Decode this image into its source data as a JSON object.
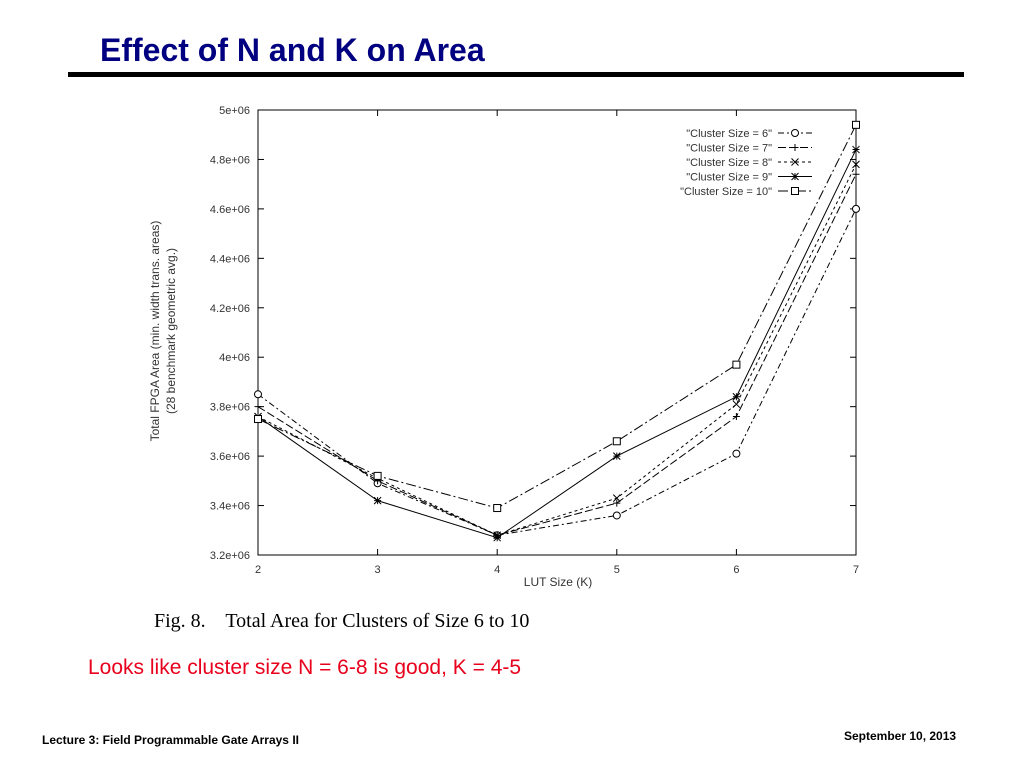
{
  "slide": {
    "title": "Effect of N and K on Area",
    "figure_caption": "Fig. 8.    Total Area for Clusters of Size 6 to 10",
    "note": "Looks like cluster size N = 6-8 is good, K = 4-5",
    "footer_left": "Lecture 3: Field Programmable Gate Arrays II",
    "footer_right": "September 10, 2013",
    "colors": {
      "title": "#000080",
      "note": "#e8001c",
      "rule": "#000000"
    }
  },
  "chart_data": {
    "type": "line",
    "xlabel": "LUT Size (K)",
    "ylabel": "Total FPGA Area (min. width trans. areas)",
    "ylabel2": "(28 benchmark geometric avg.)",
    "x": [
      2,
      3,
      4,
      5,
      6,
      7
    ],
    "x_tick_labels": [
      "2",
      "3",
      "4",
      "5",
      "6",
      "7"
    ],
    "xlim": [
      2,
      7
    ],
    "ylim": [
      3200000,
      5000000
    ],
    "y_ticks": [
      3200000,
      3400000,
      3600000,
      3800000,
      4000000,
      4200000,
      4400000,
      4600000,
      4800000,
      5000000
    ],
    "y_tick_labels": [
      "3.2e+06",
      "3.4e+06",
      "3.6e+06",
      "3.8e+06",
      "4e+06",
      "4.2e+06",
      "4.4e+06",
      "4.6e+06",
      "4.8e+06",
      "5e+06"
    ],
    "grid": false,
    "legend_position": "top-right",
    "series": [
      {
        "name": "\"Cluster Size = 6\"",
        "marker": "circle",
        "dash": "6,3,2,3",
        "values": [
          3850000,
          3490000,
          3280000,
          3360000,
          3610000,
          4600000
        ]
      },
      {
        "name": "\"Cluster Size = 7\"",
        "marker": "plus",
        "dash": "8,3",
        "values": [
          3800000,
          3500000,
          3280000,
          3410000,
          3760000,
          4740000
        ]
      },
      {
        "name": "\"Cluster Size = 8\"",
        "marker": "x",
        "dash": "3,3",
        "values": [
          3760000,
          3510000,
          3280000,
          3430000,
          3810000,
          4780000
        ]
      },
      {
        "name": "\"Cluster Size = 9\"",
        "marker": "star",
        "dash": "none",
        "values": [
          3760000,
          3420000,
          3270000,
          3600000,
          3840000,
          4840000
        ]
      },
      {
        "name": "\"Cluster Size = 10\"",
        "marker": "square",
        "dash": "10,3,2,3",
        "values": [
          3750000,
          3520000,
          3390000,
          3660000,
          3970000,
          4940000
        ]
      }
    ]
  }
}
